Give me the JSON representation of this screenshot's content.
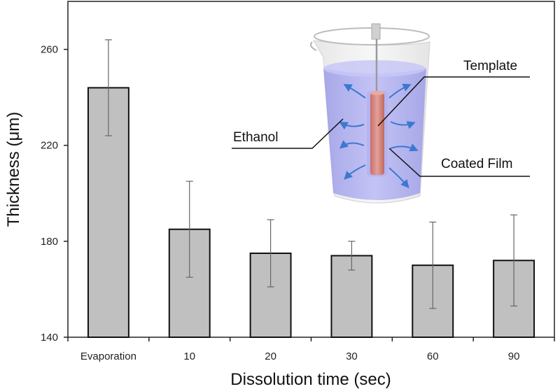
{
  "chart_data": {
    "type": "bar",
    "title": "",
    "xlabel": "Dissolution time (sec)",
    "ylabel": "Thickness (μm)",
    "categories": [
      "Evaporation",
      "10",
      "20",
      "30",
      "60",
      "90"
    ],
    "values": [
      244,
      185,
      175,
      174,
      170,
      172
    ],
    "error_low": [
      224,
      165,
      161,
      168,
      152,
      153
    ],
    "error_high": [
      264,
      205,
      189,
      180,
      188,
      191
    ],
    "ylim": [
      140,
      280
    ],
    "yticks": [
      140,
      180,
      220,
      260
    ],
    "grid": false,
    "bar_color": "#c0c0c0",
    "inset": {
      "labels": {
        "template": "Template",
        "ethanol": "Ethanol",
        "coated_film": "Coated Film"
      },
      "liquid_color": "#a9a9f2",
      "template_color": "#d98a80",
      "arrow_color": "#3d78d0"
    }
  }
}
